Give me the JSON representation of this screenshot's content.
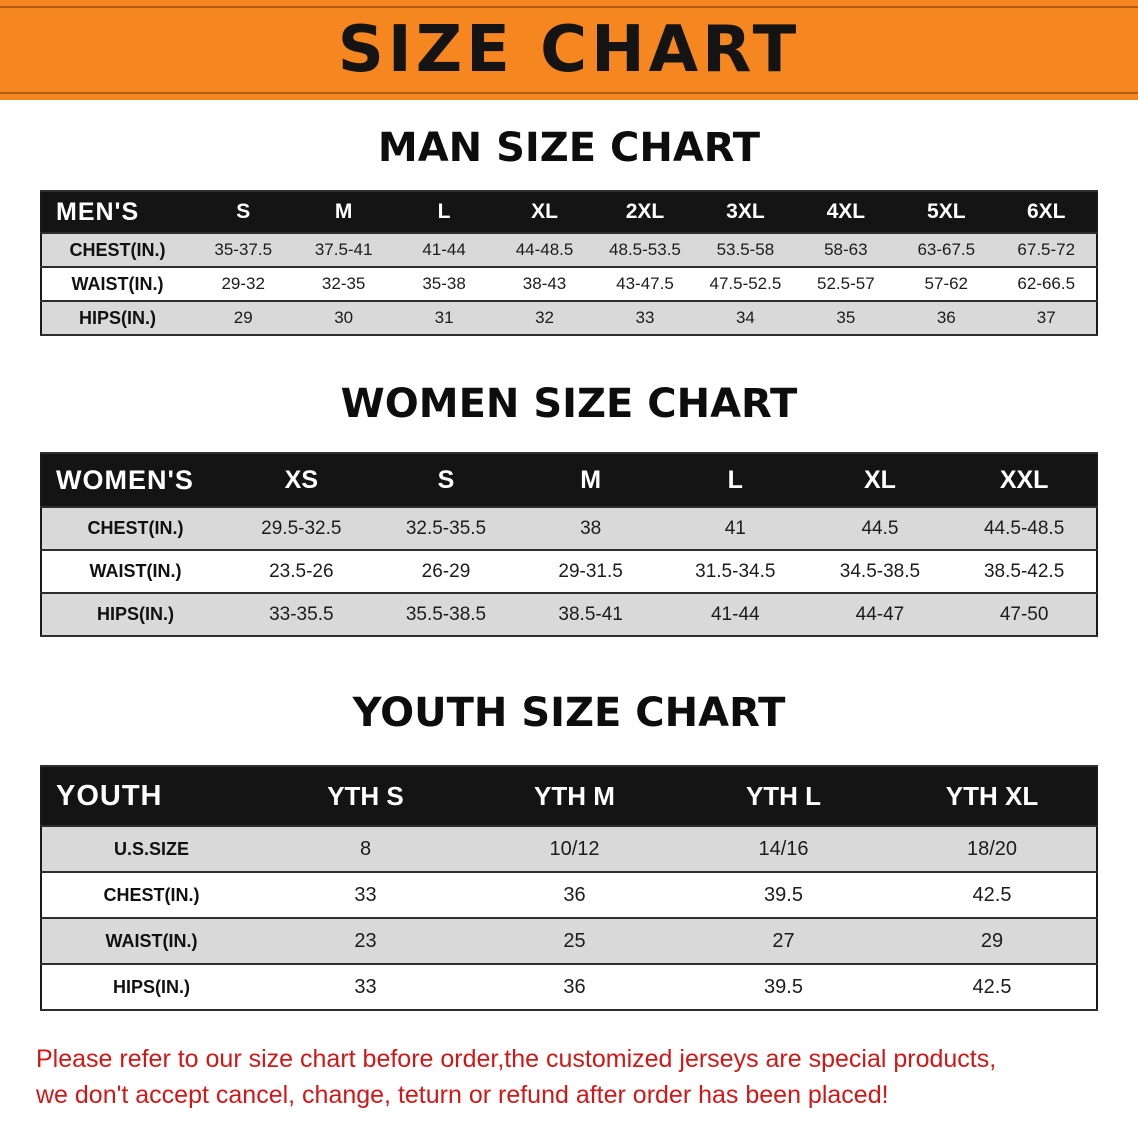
{
  "banner": {
    "title": "SIZE CHART"
  },
  "sections": [
    {
      "heading": "MAN SIZE CHART",
      "table": {
        "header": [
          "MEN'S",
          "S",
          "M",
          "L",
          "XL",
          "2XL",
          "3XL",
          "4XL",
          "5XL",
          "6XL"
        ],
        "rows": [
          [
            "CHEST(IN.)",
            "35-37.5",
            "37.5-41",
            "41-44",
            "44-48.5",
            "48.5-53.5",
            "53.5-58",
            "58-63",
            "63-67.5",
            "67.5-72"
          ],
          [
            "WAIST(IN.)",
            "29-32",
            "32-35",
            "35-38",
            "38-43",
            "43-47.5",
            "47.5-52.5",
            "52.5-57",
            "57-62",
            "62-66.5"
          ],
          [
            "HIPS(IN.)",
            "29",
            "30",
            "31",
            "32",
            "33",
            "34",
            "35",
            "36",
            "37"
          ]
        ]
      }
    },
    {
      "heading": "WOMEN SIZE CHART",
      "table": {
        "header": [
          "WOMEN'S",
          "XS",
          "S",
          "M",
          "L",
          "XL",
          "XXL"
        ],
        "rows": [
          [
            "CHEST(IN.)",
            "29.5-32.5",
            "32.5-35.5",
            "38",
            "41",
            "44.5",
            "44.5-48.5"
          ],
          [
            "WAIST(IN.)",
            "23.5-26",
            "26-29",
            "29-31.5",
            "31.5-34.5",
            "34.5-38.5",
            "38.5-42.5"
          ],
          [
            "HIPS(IN.)",
            "33-35.5",
            "35.5-38.5",
            "38.5-41",
            "41-44",
            "44-47",
            "47-50"
          ]
        ]
      }
    },
    {
      "heading": "YOUTH SIZE CHART",
      "table": {
        "header": [
          "YOUTH",
          "YTH S",
          "YTH M",
          "YTH L",
          "YTH XL"
        ],
        "rows": [
          [
            "U.S.SIZE",
            "8",
            "10/12",
            "14/16",
            "18/20"
          ],
          [
            "CHEST(IN.)",
            "33",
            "36",
            "39.5",
            "42.5"
          ],
          [
            "WAIST(IN.)",
            "23",
            "25",
            "27",
            "29"
          ],
          [
            "HIPS(IN.)",
            "33",
            "36",
            "39.5",
            "42.5"
          ]
        ]
      }
    }
  ],
  "footer": {
    "lines": [
      "Please refer to our size chart before order,the customized jerseys are special products,",
      "we don't accept cancel, change, teturn or refund after order has been placed!"
    ]
  },
  "colors": {
    "banner-bg": "#f6861f",
    "banner-line": "#7a3c05",
    "header-bg": "#141414",
    "header-text": "#ffffff",
    "row-gray": "#d9d9d9",
    "notice-red": "#d01818",
    "text-dark": "#111111"
  }
}
